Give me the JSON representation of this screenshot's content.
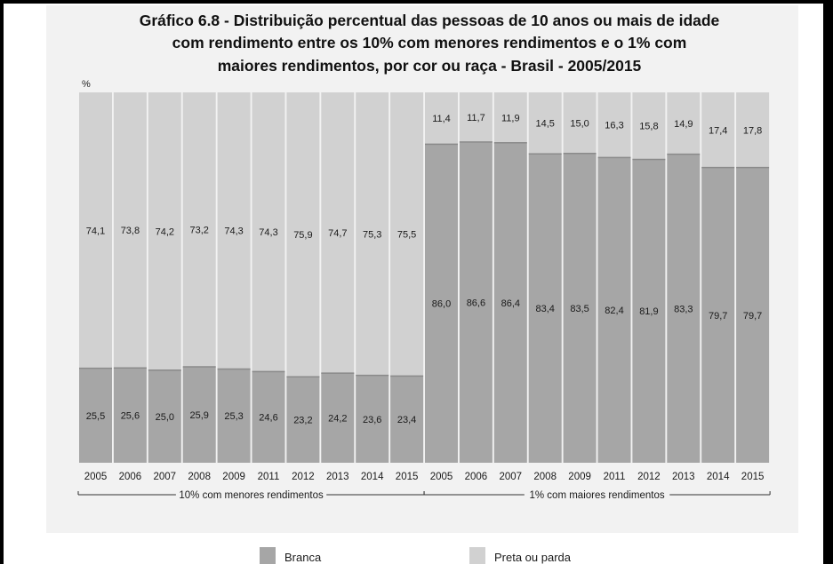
{
  "chart_data": {
    "type": "bar",
    "stacked": true,
    "percent_stacked": true,
    "title": [
      "Gráfico 6.8 - Distribuição percentual das pessoas de 10 anos ou mais de idade",
      "com rendimento entre os 10%  com menores rendimentos e o 1% com",
      "maiores rendimentos, por cor ou raça - Brasil - 2005/2015"
    ],
    "unit": "%",
    "ylim": [
      0,
      100
    ],
    "grid": false,
    "legend_position": "bottom",
    "groups": [
      {
        "label": "10% com menores rendimentos",
        "categories": [
          "2005",
          "2006",
          "2007",
          "2008",
          "2009",
          "2011",
          "2012",
          "2013",
          "2014",
          "2015"
        ],
        "series": [
          {
            "name": "Branca",
            "values": [
              25.5,
              25.6,
              25.0,
              25.9,
              25.3,
              24.6,
              23.2,
              24.2,
              23.6,
              23.4
            ],
            "labels": [
              "25,5",
              "25,6",
              "25,0",
              "25,9",
              "25,3",
              "24,6",
              "23,2",
              "24,2",
              "23,6",
              "23,4"
            ]
          },
          {
            "name": "Preta ou parda",
            "values": [
              74.1,
              73.8,
              74.2,
              73.2,
              74.3,
              74.3,
              75.9,
              74.7,
              75.3,
              75.5
            ],
            "labels": [
              "74,1",
              "73,8",
              "74,2",
              "73,2",
              "74,3",
              "74,3",
              "75,9",
              "74,7",
              "75,3",
              "75,5"
            ]
          }
        ]
      },
      {
        "label": "1% com maiores rendimentos",
        "categories": [
          "2005",
          "2006",
          "2007",
          "2008",
          "2009",
          "2011",
          "2012",
          "2013",
          "2014",
          "2015"
        ],
        "series": [
          {
            "name": "Branca",
            "values": [
              86.0,
              86.6,
              86.4,
              83.4,
              83.5,
              82.4,
              81.9,
              83.3,
              79.7,
              79.7
            ],
            "labels": [
              "86,0",
              "86,6",
              "86,4",
              "83,4",
              "83,5",
              "82,4",
              "81,9",
              "83,3",
              "79,7",
              "79,7"
            ]
          },
          {
            "name": "Preta ou parda",
            "values": [
              11.4,
              11.7,
              11.9,
              14.5,
              15.0,
              16.3,
              15.8,
              14.9,
              17.4,
              17.8
            ],
            "labels": [
              "11,4",
              "11,7",
              "11,9",
              "14,5",
              "15,0",
              "16,3",
              "15,8",
              "14,9",
              "17,4",
              "17,8"
            ]
          }
        ]
      }
    ],
    "legend": [
      {
        "name": "Branca",
        "color": "#a6a6a6"
      },
      {
        "name": "Preta ou parda",
        "color": "#d1d1d1"
      }
    ]
  }
}
